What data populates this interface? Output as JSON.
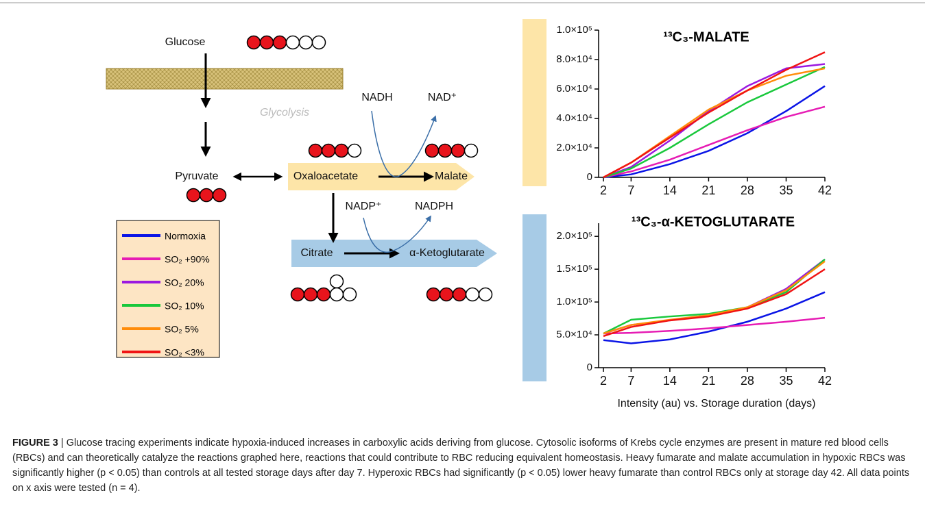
{
  "diagram": {
    "glucose": "Glucose",
    "glycolysis": "Glycolysis",
    "pyruvate": "Pyruvate",
    "oxaloacetate": "Oxaloacetate",
    "malate": "Malate",
    "nadh": "NADH",
    "nad": "NAD⁺",
    "nadp": "NADP⁺",
    "nadph": "NADPH",
    "citrate": "Citrate",
    "akg": "α-Ketoglutarate"
  },
  "x_axis_label": "Intensity (au) vs. Storage duration (days)",
  "chart_data": [
    {
      "type": "line",
      "title": "¹³C₃-MALATE",
      "x": [
        2,
        7,
        14,
        21,
        28,
        35,
        42
      ],
      "xlim": [
        2,
        42
      ],
      "xticks": [
        2,
        7,
        14,
        21,
        28,
        35,
        42
      ],
      "ylim": [
        0,
        100000
      ],
      "yticks": [
        0,
        {
          "value": 20000,
          "label": "2.0×10⁴"
        },
        {
          "value": 40000,
          "label": "4.0×10⁴"
        },
        {
          "value": 60000,
          "label": "6.0×10⁴"
        },
        {
          "value": 80000,
          "label": "8.0×10⁴"
        },
        {
          "value": 100000,
          "label": "1.0×10⁵"
        }
      ],
      "series": [
        {
          "name": "Normoxia",
          "color": "#0a14e6",
          "values": [
            0,
            2000,
            9000,
            18000,
            30000,
            45000,
            62000
          ]
        },
        {
          "name": "SO₂ +90%",
          "color": "#e61cb4",
          "values": [
            0,
            4000,
            12000,
            22000,
            32000,
            41000,
            48000
          ]
        },
        {
          "name": "SO₂ 20%",
          "color": "#9b19e0",
          "values": [
            0,
            7000,
            25000,
            45000,
            62000,
            74000,
            77000
          ]
        },
        {
          "name": "SO₂ 10%",
          "color": "#19c83c",
          "values": [
            0,
            6000,
            20000,
            36000,
            51000,
            63000,
            75000
          ]
        },
        {
          "name": "SO₂ 5%",
          "color": "#ff8c0a",
          "values": [
            0,
            10000,
            28000,
            46000,
            59000,
            69000,
            74000
          ]
        },
        {
          "name": "SO₂ <3%",
          "color": "#f01414",
          "values": [
            0,
            10000,
            27000,
            44000,
            59000,
            73000,
            85000
          ]
        }
      ]
    },
    {
      "type": "line",
      "title": "¹³C₃-α-KETOGLUTARATE",
      "x": [
        2,
        7,
        14,
        21,
        28,
        35,
        42
      ],
      "xlim": [
        2,
        42
      ],
      "xticks": [
        2,
        7,
        14,
        21,
        28,
        35,
        42
      ],
      "ylim": [
        0,
        220000
      ],
      "yticks": [
        0,
        {
          "value": 50000,
          "label": "5.0×10⁴"
        },
        {
          "value": 100000,
          "label": "1.0×10⁵"
        },
        {
          "value": 150000,
          "label": "1.5×10⁵"
        },
        {
          "value": 200000,
          "label": "2.0×10⁵"
        }
      ],
      "series": [
        {
          "name": "Normoxia",
          "color": "#0a14e6",
          "values": [
            42000,
            37000,
            43000,
            55000,
            70000,
            90000,
            115000
          ]
        },
        {
          "name": "SO₂ +90%",
          "color": "#e61cb4",
          "values": [
            52000,
            53000,
            56000,
            60000,
            65000,
            70000,
            76000
          ]
        },
        {
          "name": "SO₂ 20%",
          "color": "#9b19e0",
          "values": [
            52000,
            65000,
            72000,
            80000,
            92000,
            120000,
            165000
          ]
        },
        {
          "name": "SO₂ 10%",
          "color": "#19c83c",
          "values": [
            52000,
            73000,
            78000,
            82000,
            92000,
            115000,
            165000
          ]
        },
        {
          "name": "SO₂ 5%",
          "color": "#ff8c0a",
          "values": [
            52000,
            65000,
            73000,
            80000,
            92000,
            118000,
            162000
          ]
        },
        {
          "name": "SO₂ <3%",
          "color": "#f01414",
          "values": [
            48000,
            62000,
            72000,
            78000,
            90000,
            112000,
            150000
          ]
        }
      ]
    }
  ],
  "caption": {
    "label": "FIGURE 3",
    "text": "| Glucose tracing experiments indicate hypoxia-induced increases in carboxylic acids deriving from glucose. Cytosolic isoforms of Krebs cycle enzymes are present in mature red blood cells (RBCs) and can theoretically catalyze the reactions graphed here, reactions that could contribute to RBC reducing equivalent homeostasis. Heavy fumarate and malate accumulation in hypoxic RBCs was significantly higher (p < 0.05) than controls at all tested storage days after day 7. Hyperoxic RBCs had significantly (p < 0.05) lower heavy fumarate than control RBCs only at storage day 42. All data points on x axis were tested (n = 4)."
  }
}
